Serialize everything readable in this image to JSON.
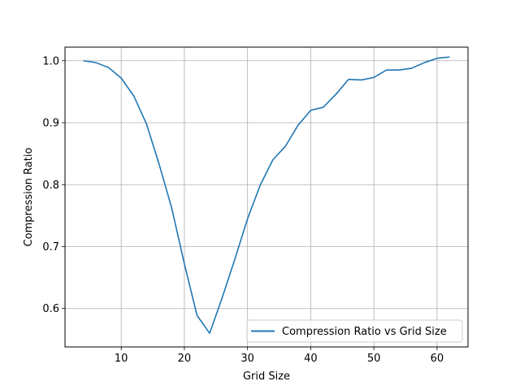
{
  "chart_data": {
    "type": "line",
    "title": "",
    "xlabel": "Grid Size",
    "ylabel": "Compression Ratio",
    "xlim": [
      1.1,
      64.9
    ],
    "ylim": [
      0.538,
      1.022
    ],
    "x_ticks": [
      10,
      20,
      30,
      40,
      50,
      60
    ],
    "y_ticks": [
      0.6,
      0.7,
      0.8,
      0.9,
      1.0
    ],
    "x_tick_labels": [
      "10",
      "20",
      "30",
      "40",
      "50",
      "60"
    ],
    "y_tick_labels": [
      "0.6",
      "0.7",
      "0.8",
      "0.9",
      "1.0"
    ],
    "grid": true,
    "legend_position": "lower-right",
    "series": [
      {
        "name": "Compression Ratio vs Grid Size",
        "color": "#1f77b4",
        "x": [
          4,
          6,
          8,
          10,
          12,
          14,
          16,
          18,
          20,
          22,
          24,
          26,
          28,
          30,
          32,
          34,
          36,
          38,
          40,
          42,
          44,
          46,
          48,
          50,
          52,
          54,
          56,
          58,
          60,
          62
        ],
        "y": [
          1.0,
          0.997,
          0.989,
          0.972,
          0.943,
          0.898,
          0.833,
          0.762,
          0.672,
          0.589,
          0.56,
          0.618,
          0.68,
          0.745,
          0.799,
          0.84,
          0.862,
          0.896,
          0.92,
          0.925,
          0.946,
          0.97,
          0.969,
          0.973,
          0.985,
          0.985,
          0.988,
          0.997,
          1.004,
          1.006
        ]
      }
    ]
  }
}
